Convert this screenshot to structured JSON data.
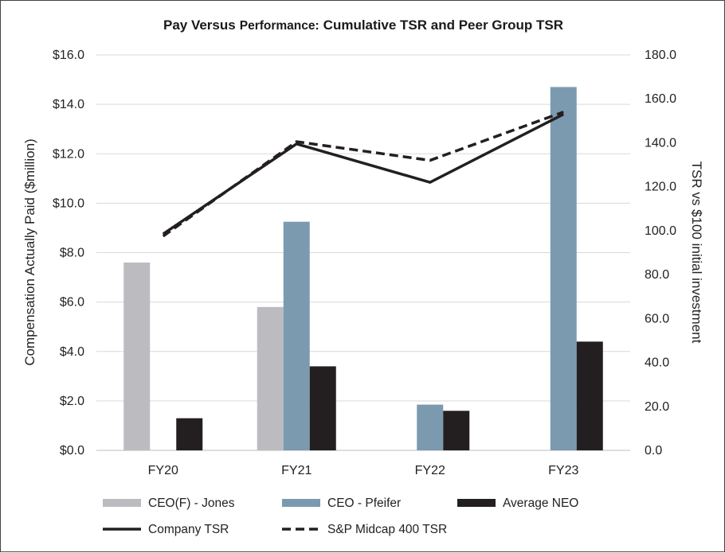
{
  "chart_data": {
    "type": "bar+line",
    "title_part1": "Pay Versus",
    "title_part2": "Performance:",
    "title_part3": "Cumulative TSR and Peer Group TSR",
    "categories": [
      "FY20",
      "FY21",
      "FY22",
      "FY23"
    ],
    "ylabel_left": "Compensation Actually Paid ($million)",
    "ylabel_right": "TSR vs $100 initial investment",
    "ylim_left": [
      0,
      16
    ],
    "ylim_right": [
      0,
      180
    ],
    "yticks_left": [
      "$0.0",
      "$2.0",
      "$4.0",
      "$6.0",
      "$8.0",
      "$10.0",
      "$12.0",
      "$14.0",
      "$16.0"
    ],
    "yticks_right": [
      "0.0",
      "20.0",
      "40.0",
      "60.0",
      "80.0",
      "100.0",
      "120.0",
      "140.0",
      "160.0",
      "180.0"
    ],
    "bar_series": [
      {
        "name": "CEO(F) - Jones",
        "color": "#bcbcc0",
        "values": [
          7.6,
          5.8,
          null,
          null
        ]
      },
      {
        "name": "CEO - Pfeifer",
        "color": "#7b9ab0",
        "values": [
          null,
          9.25,
          1.85,
          14.7
        ]
      },
      {
        "name": "Average NEO",
        "color": "#231f20",
        "values": [
          1.3,
          3.4,
          1.6,
          4.4
        ]
      }
    ],
    "line_series": [
      {
        "name": "Company TSR",
        "color": "#231f20",
        "style": "solid",
        "values": [
          98.5,
          139.5,
          122.0,
          153.0
        ]
      },
      {
        "name": "S&P Midcap 400 TSR",
        "color": "#231f20",
        "style": "dashed",
        "values": [
          97.5,
          140.5,
          132.0,
          154.0
        ]
      }
    ],
    "grid": true,
    "legend_position": "bottom"
  }
}
